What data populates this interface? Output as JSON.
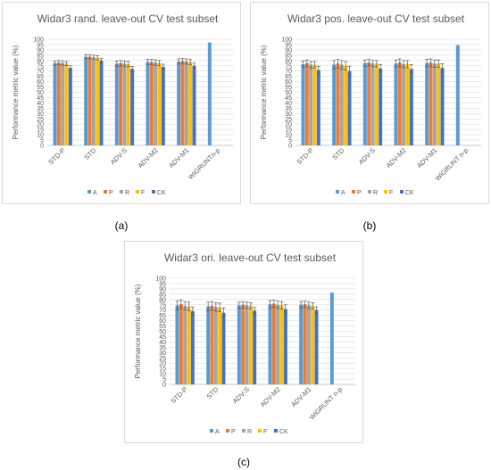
{
  "legend_labels": [
    "A",
    "P",
    "R",
    "F",
    "CK"
  ],
  "series_colors": [
    "#5b9bd5",
    "#ed7d31",
    "#a5a5a5",
    "#ffc000",
    "#4472c4"
  ],
  "chart_data": [
    {
      "type": "bar",
      "caption": "(a)",
      "title": "Widar3 rand. leave-out CV test subset",
      "ylabel": "Performance metric value (%)",
      "ylim": [
        0,
        100
      ],
      "yticks": [
        "0",
        "5",
        "10",
        "15",
        "20",
        "25",
        "30",
        "35",
        "40",
        "45",
        "50",
        "55",
        "60",
        "65",
        "70",
        "75",
        "80",
        "85",
        "90",
        "95",
        "100"
      ],
      "categories": [
        "STD-P",
        "STD",
        "ADV-S",
        "ADV-M2",
        "ADV-M1",
        "WiGRUNTn-p"
      ],
      "legend_position": "bottom",
      "grid": true,
      "series": [
        {
          "name": "A",
          "values": [
            77.5,
            83.5,
            77.0,
            78.5,
            79.0,
            97.0
          ],
          "errors": [
            2.0,
            2.0,
            2.5,
            2.5,
            2.5,
            0
          ]
        },
        {
          "name": "P",
          "values": [
            78.0,
            83.5,
            77.5,
            78.5,
            79.5,
            null
          ],
          "errors": [
            2.0,
            2.0,
            2.5,
            2.5,
            2.5,
            0
          ]
        },
        {
          "name": "R",
          "values": [
            77.5,
            83.0,
            77.0,
            78.0,
            79.0,
            null
          ],
          "errors": [
            2.0,
            2.0,
            2.5,
            2.5,
            2.5,
            0
          ]
        },
        {
          "name": "F",
          "values": [
            77.0,
            82.5,
            76.5,
            77.5,
            78.5,
            null
          ],
          "errors": [
            2.0,
            2.0,
            2.5,
            2.5,
            2.5,
            0
          ]
        },
        {
          "name": "CK",
          "values": [
            73.0,
            80.0,
            72.0,
            74.0,
            75.0,
            null
          ],
          "errors": [
            2.0,
            2.0,
            2.5,
            2.5,
            2.5,
            0
          ]
        }
      ]
    },
    {
      "type": "bar",
      "caption": "(b)",
      "title": "Widar3 pos. leave-out CV test subset",
      "ylabel": "Performance metric value (%)",
      "ylim": [
        0,
        100
      ],
      "yticks": [
        "0",
        "5",
        "10",
        "15",
        "20",
        "25",
        "30",
        "35",
        "40",
        "45",
        "50",
        "55",
        "60",
        "65",
        "70",
        "75",
        "80",
        "85",
        "90",
        "95",
        "100"
      ],
      "categories": [
        "STD-P",
        "STD",
        "ADV-S",
        "ADV-M2",
        "ADV-M1",
        "WiGRUNT n-p"
      ],
      "legend_position": "bottom",
      "grid": true,
      "series": [
        {
          "name": "A",
          "values": [
            76.5,
            76.0,
            77.5,
            77.0,
            77.5,
            94.5
          ],
          "errors": [
            3.0,
            4.0,
            3.0,
            3.5,
            3.5,
            0
          ]
        },
        {
          "name": "P",
          "values": [
            77.5,
            77.0,
            78.0,
            78.0,
            78.0,
            null
          ],
          "errors": [
            3.0,
            4.0,
            3.0,
            3.5,
            3.5,
            0
          ]
        },
        {
          "name": "R",
          "values": [
            76.0,
            76.0,
            77.0,
            76.5,
            77.0,
            null
          ],
          "errors": [
            3.0,
            4.0,
            3.0,
            3.5,
            3.5,
            0
          ]
        },
        {
          "name": "F",
          "values": [
            76.0,
            75.0,
            77.0,
            76.5,
            77.0,
            null
          ],
          "errors": [
            3.0,
            4.0,
            3.0,
            3.5,
            3.5,
            0
          ]
        },
        {
          "name": "CK",
          "values": [
            71.0,
            70.0,
            72.5,
            72.0,
            73.0,
            null
          ],
          "errors": [
            3.5,
            4.5,
            3.5,
            4.0,
            4.0,
            0
          ]
        }
      ]
    },
    {
      "type": "bar",
      "caption": "(c)",
      "title": "Widar3 ori. leave-out CV test subset",
      "ylabel": "Performance metric value (%)",
      "ylim": [
        0,
        100
      ],
      "yticks": [
        "0",
        "5",
        "10",
        "15",
        "20",
        "25",
        "30",
        "35",
        "40",
        "45",
        "50",
        "55",
        "60",
        "65",
        "70",
        "75",
        "80",
        "85",
        "90",
        "95",
        "100"
      ],
      "categories": [
        "STD-P",
        "STD",
        "ADV-S",
        "ADV-M2",
        "ADV-M1",
        "WiGRUNT n-p"
      ],
      "legend_position": "bottom",
      "grid": true,
      "series": [
        {
          "name": "A",
          "values": [
            74.5,
            73.5,
            74.5,
            75.5,
            75.0,
            86.5
          ],
          "errors": [
            4.0,
            4.0,
            3.0,
            3.5,
            3.0,
            0
          ]
        },
        {
          "name": "P",
          "values": [
            75.5,
            74.0,
            75.0,
            76.0,
            75.5,
            null
          ],
          "errors": [
            4.0,
            4.0,
            3.0,
            3.5,
            3.0,
            0
          ]
        },
        {
          "name": "R",
          "values": [
            74.0,
            73.0,
            74.5,
            75.0,
            74.5,
            null
          ],
          "errors": [
            4.0,
            4.0,
            3.0,
            3.5,
            3.0,
            0
          ]
        },
        {
          "name": "F",
          "values": [
            73.5,
            72.5,
            74.0,
            74.5,
            74.0,
            null
          ],
          "errors": [
            4.0,
            4.0,
            3.0,
            3.5,
            3.0,
            0
          ]
        },
        {
          "name": "CK",
          "values": [
            69.0,
            67.5,
            69.5,
            71.0,
            70.0,
            null
          ],
          "errors": [
            4.0,
            4.5,
            3.0,
            4.0,
            3.0,
            0
          ]
        }
      ]
    }
  ]
}
